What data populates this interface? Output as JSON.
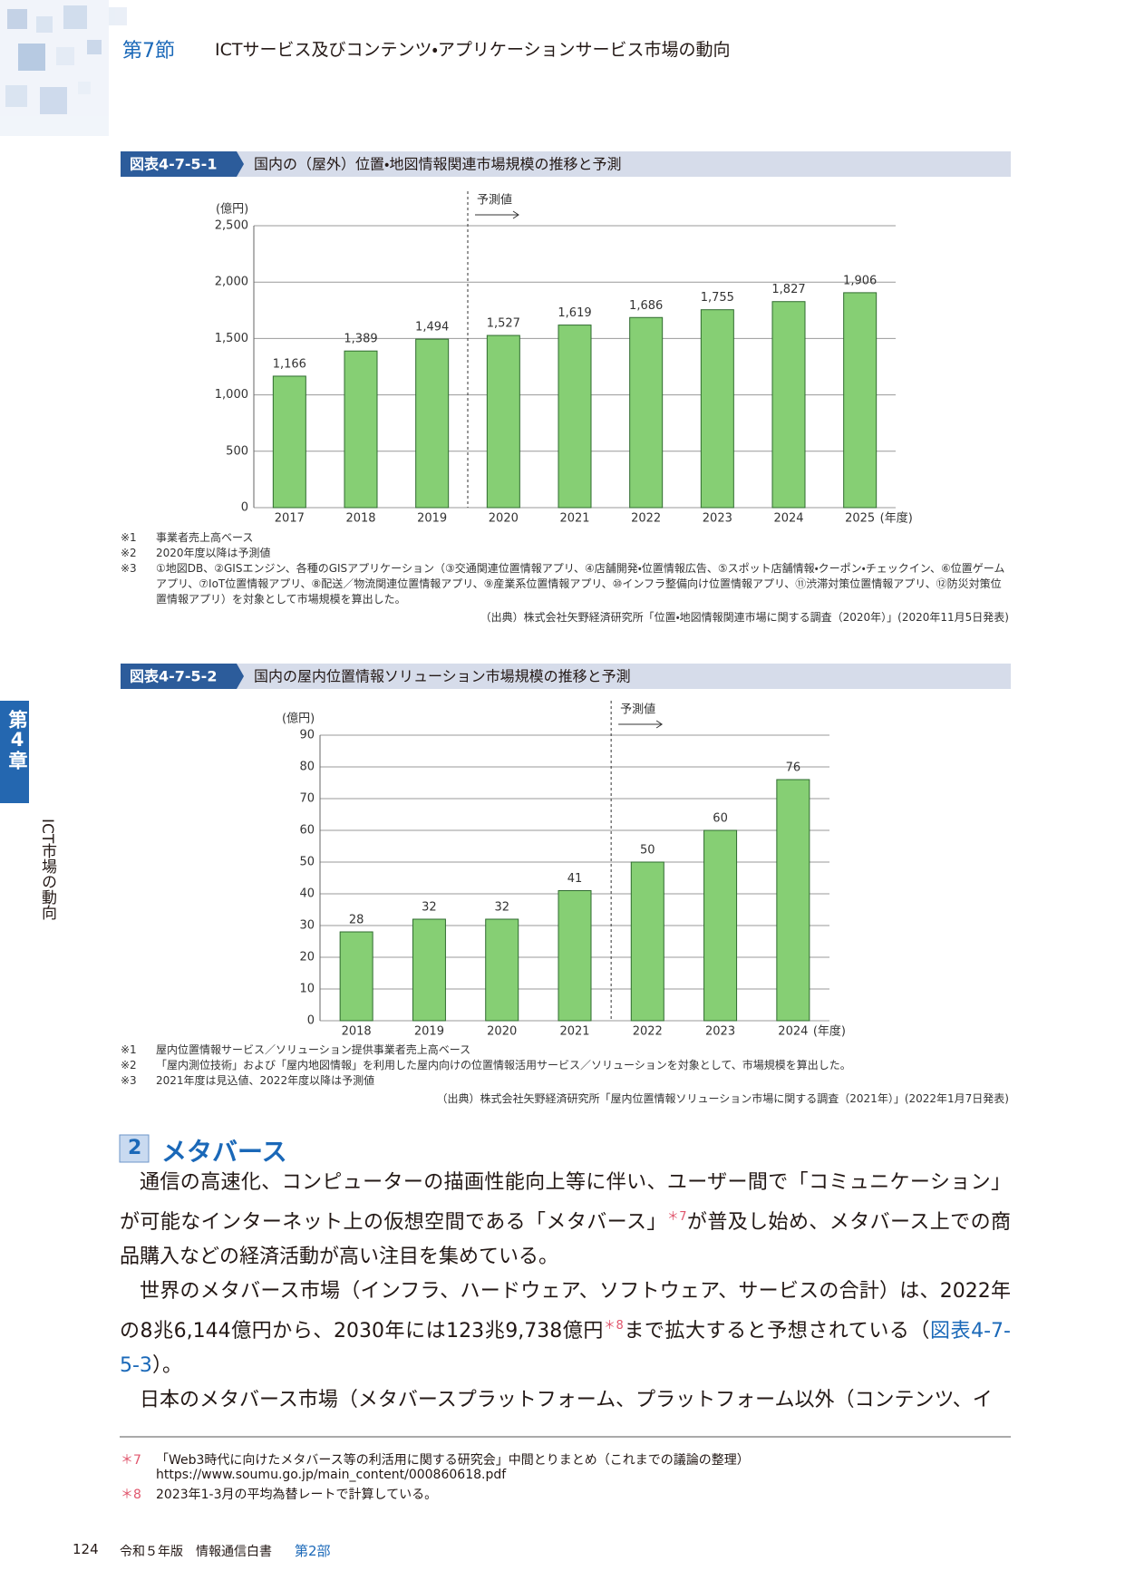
{
  "header": {
    "section": "第7節",
    "title": "ICTサービス及びコンテンツ・アプリケーションサービス市場の動向"
  },
  "side_tab": {
    "chapter": "第4章",
    "title": "ICT市場の動向"
  },
  "chart_data": [
    {
      "type": "bar",
      "figure_id": "図表4-7-5-1",
      "title": "国内の（屋外）位置・地図情報関連市場規模の推移と予測",
      "y_unit": "(億円)",
      "x_unit": "(年度)",
      "forecast_label": "予測値",
      "categories": [
        "2017",
        "2018",
        "2019",
        "2020",
        "2021",
        "2022",
        "2023",
        "2024",
        "2025"
      ],
      "values": [
        1166,
        1389,
        1494,
        1527,
        1619,
        1686,
        1755,
        1827,
        1906
      ],
      "value_labels": [
        "1,166",
        "1,389",
        "1,494",
        "1,527",
        "1,619",
        "1,686",
        "1,755",
        "1,827",
        "1,906"
      ],
      "color": "#86cf74",
      "ylim": [
        0,
        2500
      ],
      "yticks": [
        0,
        500,
        {
          "value": 1000,
          "label": "1,000"
        },
        {
          "value": 1500,
          "label": "1,500"
        },
        {
          "value": 2000,
          "label": "2,000"
        },
        {
          "value": 2500,
          "label": "2,500"
        }
      ],
      "grid": true,
      "notes": [
        {
          "mark": "※1",
          "text": "事業者売上高ベース"
        },
        {
          "mark": "※2",
          "text": "2020年度以降は予測値"
        },
        {
          "mark": "※3",
          "text": "①地図DB、②GISエンジン、各種のGISアプリケーション（③交通関連位置情報アプリ、④店舗開発・位置情報広告、⑤スポット店舗情報・クーポン・チェックイン、⑥位置ゲームアプリ、⑦IoT位置情報アプリ、⑧配送／物流関連位置情報アプリ、⑨産業系位置情報アプリ、⑩インフラ整備向け位置情報アプリ、⑪渋滞対策位置情報アプリ、⑫防災対策位置情報アプリ）を対象として市場規模を算出した。"
        }
      ],
      "source": "（出典）株式会社矢野経済研究所「位置・地図情報関連市場に関する調査（2020年）」(2020年11月5日発表)"
    },
    {
      "type": "bar",
      "figure_id": "図表4-7-5-2",
      "title": "国内の屋内位置情報ソリューション市場規模の推移と予測",
      "y_unit": "(億円)",
      "x_unit": "(年度)",
      "forecast_label": "予測値",
      "categories": [
        "2018",
        "2019",
        "2020",
        "2021",
        "2022",
        "2023",
        "2024"
      ],
      "values": [
        28,
        32,
        32,
        41,
        50,
        60,
        76
      ],
      "color": "#86cf74",
      "ylim": [
        0,
        90
      ],
      "yticks": [
        0,
        10,
        20,
        30,
        40,
        50,
        60,
        70,
        80,
        90
      ],
      "grid": true,
      "notes": [
        {
          "mark": "※1",
          "text": "屋内位置情報サービス／ソリューション提供事業者売上高ベース"
        },
        {
          "mark": "※2",
          "text": "「屋内測位技術」および「屋内地図情報」を利用した屋内向けの位置情報活用サービス／ソリューションを対象として、市場規模を算出した。"
        },
        {
          "mark": "※3",
          "text": "2021年度は見込値、2022年度以降は予測値"
        }
      ],
      "source": "（出典）株式会社矢野経済研究所「屋内位置情報ソリューション市場に関する調査（2021年）」(2022年1月7日発表)"
    }
  ],
  "section": {
    "number": "2",
    "title": "メタバース",
    "paragraphs": [
      [
        "通信の高速化、コンピューターの描画性能向上等に伴い、ユーザー間で「コミュニケーション」が可能なインターネット上の仮想空間である「メタバース」",
        "＊7",
        "が普及し始め、メタバース上での商品購入などの経済活動が高い注目を集めている。"
      ],
      [
        "世界のメタバース市場（インフラ、ハードウェア、ソフトウェア、サービスの合計）は、2022年の8兆6,144億円から、2030年には123兆9,738億円",
        "＊8",
        "まで拡大すると予想されている（",
        "図表4-7-5-3",
        "）。"
      ],
      [
        "日本のメタバース市場（メタバースプラットフォーム、プラットフォーム以外（コンテンツ、イ"
      ]
    ]
  },
  "footnotes": [
    {
      "mark": "＊7",
      "lines": [
        "「Web3時代に向けたメタバース等の利活用に関する研究会」中間とりまとめ（これまでの議論の整理）",
        "https://www.soumu.go.jp/main_content/000860618.pdf"
      ]
    },
    {
      "mark": "＊8",
      "lines": [
        "2023年1-3月の平均為替レートで計算している。"
      ]
    }
  ],
  "footer": {
    "page": "124",
    "book": "令和５年版　情報通信白書",
    "part": "第2部"
  }
}
